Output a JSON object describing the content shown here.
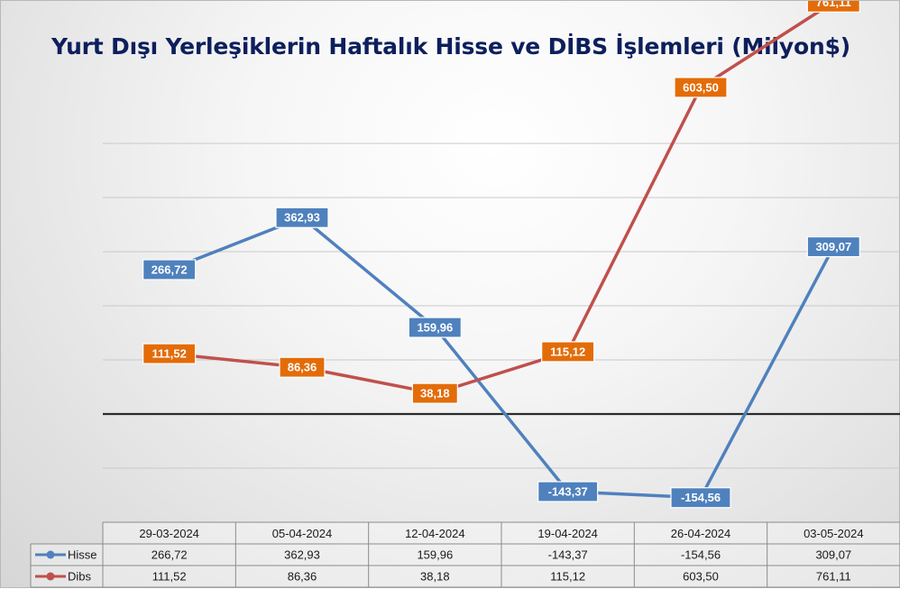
{
  "title": "Yurt Dışı Yerleşiklerin Haftalık Hisse ve DİBS İşlemleri (Milyon$)",
  "chart_data": {
    "type": "line",
    "categories": [
      "29-03-2024",
      "05-04-2024",
      "12-04-2024",
      "19-04-2024",
      "26-04-2024",
      "03-05-2024"
    ],
    "series": [
      {
        "name": "Hisse",
        "color": "#4f81bd",
        "values": [
          266.72,
          362.93,
          159.96,
          -143.37,
          -154.56,
          309.07
        ],
        "labels": [
          "266,72",
          "362,93",
          "159,96",
          "-143,37",
          "-154,56",
          "309,07"
        ],
        "label_bg": "#4f81bd"
      },
      {
        "name": "Dibs",
        "color": "#c0504d",
        "values": [
          111.52,
          86.36,
          38.18,
          115.12,
          603.5,
          761.11
        ],
        "labels": [
          "111,52",
          "86,36",
          "38,18",
          "115,12",
          "603,50",
          "761,11"
        ],
        "label_bg": "#e36c09"
      }
    ],
    "ylim": [
      -200,
      1000
    ],
    "grid": true,
    "legend": "data-table",
    "zero_line": true
  }
}
